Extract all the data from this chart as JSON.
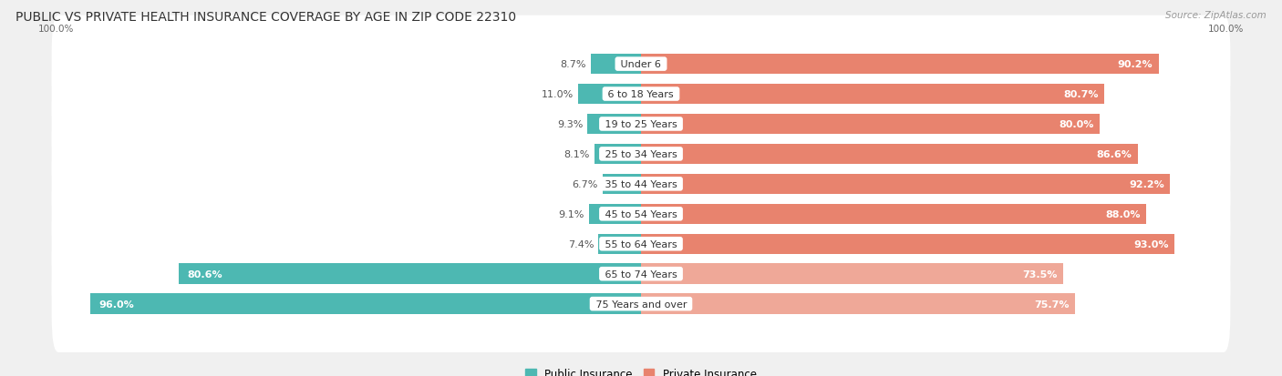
{
  "title": "PUBLIC VS PRIVATE HEALTH INSURANCE COVERAGE BY AGE IN ZIP CODE 22310",
  "source": "Source: ZipAtlas.com",
  "categories": [
    "Under 6",
    "6 to 18 Years",
    "19 to 25 Years",
    "25 to 34 Years",
    "35 to 44 Years",
    "45 to 54 Years",
    "55 to 64 Years",
    "65 to 74 Years",
    "75 Years and over"
  ],
  "public_values": [
    8.7,
    11.0,
    9.3,
    8.1,
    6.7,
    9.1,
    7.4,
    80.6,
    96.0
  ],
  "private_values": [
    90.2,
    80.7,
    80.0,
    86.6,
    92.2,
    88.0,
    93.0,
    73.5,
    75.7
  ],
  "public_color": "#4DB8B2",
  "private_color": "#E8836E",
  "private_color_light": "#EFA898",
  "bg_color": "#f0f0f0",
  "row_bg_color": "#ffffff",
  "title_fontsize": 10,
  "label_fontsize": 8,
  "value_fontsize": 8,
  "bar_height": 0.68,
  "total_width": 100,
  "label_split": 50
}
